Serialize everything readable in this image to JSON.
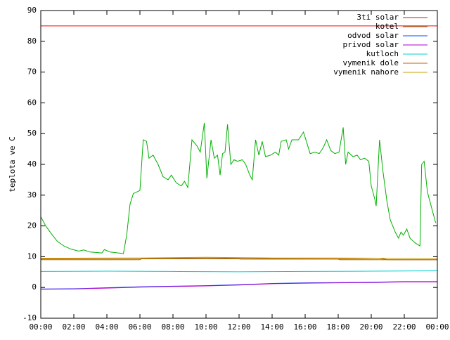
{
  "chart_data": {
    "type": "line",
    "y_label": "teplota ve C",
    "xlim": [
      0,
      24
    ],
    "xticks": [
      {
        "value": 0,
        "label": "00:00"
      },
      {
        "value": 2,
        "label": "02:00"
      },
      {
        "value": 4,
        "label": "04:00"
      },
      {
        "value": 6,
        "label": "06:00"
      },
      {
        "value": 8,
        "label": "08:00"
      },
      {
        "value": 10,
        "label": "10:00"
      },
      {
        "value": 12,
        "label": "12:00"
      },
      {
        "value": 14,
        "label": "14:00"
      },
      {
        "value": 16,
        "label": "16:00"
      },
      {
        "value": 18,
        "label": "18:00"
      },
      {
        "value": 20,
        "label": "20:00"
      },
      {
        "value": 22,
        "label": "22:00"
      },
      {
        "value": 24,
        "label": "00:00"
      }
    ],
    "ylim": [
      -10,
      90
    ],
    "yticks": [
      -10,
      0,
      10,
      20,
      30,
      40,
      50,
      60,
      70,
      80,
      90
    ],
    "legend": "top-right",
    "series": [
      {
        "name": "3ti solar",
        "color": "#ff0000",
        "x": [
          0,
          24
        ],
        "values": [
          85,
          85
        ]
      },
      {
        "name": "kotel",
        "color": "#8b6914",
        "x": [
          0,
          6,
          6.1,
          12,
          12.1,
          18,
          18.1,
          24
        ],
        "values": [
          9,
          9,
          9.3,
          9.3,
          9.2,
          9.2,
          9,
          9
        ]
      },
      {
        "name": "odvod solar",
        "color": "#0050ff",
        "x": [
          0,
          2,
          4,
          6,
          8,
          10,
          12,
          14,
          16,
          18,
          20,
          22,
          24
        ],
        "values": [
          -0.5,
          -0.4,
          -0.1,
          0.2,
          0.4,
          0.6,
          0.9,
          1.3,
          1.5,
          1.6,
          1.7,
          1.9,
          1.9
        ]
      },
      {
        "name": "privod solar",
        "color": "#b000d0",
        "x": [
          0,
          2,
          4,
          6,
          8,
          10,
          12,
          14,
          16,
          18,
          20,
          22,
          24
        ],
        "values": [
          -0.6,
          -0.5,
          -0.2,
          0.1,
          0.3,
          0.5,
          0.8,
          1.2,
          1.4,
          1.5,
          1.6,
          1.8,
          1.8
        ]
      },
      {
        "name": "kutloch",
        "color": "#00d0d0",
        "x": [
          0,
          4,
          8,
          12,
          16,
          20,
          24
        ],
        "values": [
          5.2,
          5.3,
          5.2,
          5.1,
          5.2,
          5.3,
          5.4
        ]
      },
      {
        "name": "vymenik dole",
        "color": "#c06000",
        "x": [
          0,
          6,
          10,
          14,
          18,
          20.5,
          21,
          24
        ],
        "values": [
          9.3,
          9.4,
          9.6,
          9.4,
          9.3,
          9.5,
          9,
          9
        ]
      },
      {
        "name": "vymenik nahore",
        "color": "#c8a000",
        "x": [
          0,
          6,
          10,
          14,
          18,
          22,
          24
        ],
        "values": [
          9.5,
          9.6,
          9.8,
          9.6,
          9.6,
          9.5,
          9.4
        ]
      },
      {
        "color": "#00b000",
        "x": [
          0,
          0.3,
          0.7,
          1.0,
          1.4,
          1.8,
          2.3,
          2.6,
          3.0,
          3.7,
          3.85,
          4.2,
          5.0,
          5.2,
          5.4,
          5.6,
          6.0,
          6.2,
          6.4,
          6.55,
          6.8,
          7.1,
          7.4,
          7.7,
          7.9,
          8.2,
          8.5,
          8.7,
          8.9,
          9.15,
          9.45,
          9.65,
          9.9,
          10.05,
          10.3,
          10.5,
          10.7,
          10.85,
          11.0,
          11.15,
          11.3,
          11.5,
          11.7,
          11.9,
          12.2,
          12.4,
          12.65,
          12.8,
          13.0,
          13.2,
          13.4,
          13.6,
          13.9,
          14.2,
          14.4,
          14.55,
          14.85,
          15.0,
          15.2,
          15.4,
          15.6,
          15.9,
          16.1,
          16.3,
          16.6,
          16.85,
          17.1,
          17.3,
          17.55,
          17.8,
          18.05,
          18.3,
          18.45,
          18.6,
          18.9,
          19.15,
          19.35,
          19.6,
          19.85,
          20.0,
          20.2,
          20.3,
          20.5,
          20.7,
          20.95,
          21.15,
          21.45,
          21.65,
          21.8,
          21.95,
          22.15,
          22.35,
          22.65,
          22.95,
          23.05,
          23.2,
          23.4,
          23.7,
          23.9
        ],
        "values": [
          23,
          20,
          17,
          15,
          13.5,
          12.5,
          11.8,
          12.2,
          11.5,
          11.2,
          12.3,
          11.5,
          11,
          17,
          27,
          30.5,
          31.5,
          48,
          47.5,
          42,
          43,
          40,
          36,
          35,
          36.5,
          34,
          33,
          34.5,
          32.5,
          48,
          46,
          44,
          53.5,
          35.5,
          48,
          42,
          43,
          36.5,
          43.5,
          44,
          53,
          40,
          41.5,
          41,
          41.5,
          40,
          36.5,
          35,
          48,
          43,
          47.5,
          42.5,
          43,
          44,
          43,
          47.5,
          48,
          45,
          48,
          48,
          48,
          50.5,
          47,
          43.5,
          44,
          43.5,
          45.5,
          48,
          44.5,
          43.5,
          44,
          52,
          40,
          44,
          42.5,
          43,
          41.5,
          42,
          41,
          33,
          29,
          26.5,
          48,
          38,
          28,
          22,
          18,
          16,
          18,
          17,
          19,
          16,
          14.5,
          13.5,
          40,
          41,
          31,
          25,
          21
        ]
      }
    ]
  }
}
